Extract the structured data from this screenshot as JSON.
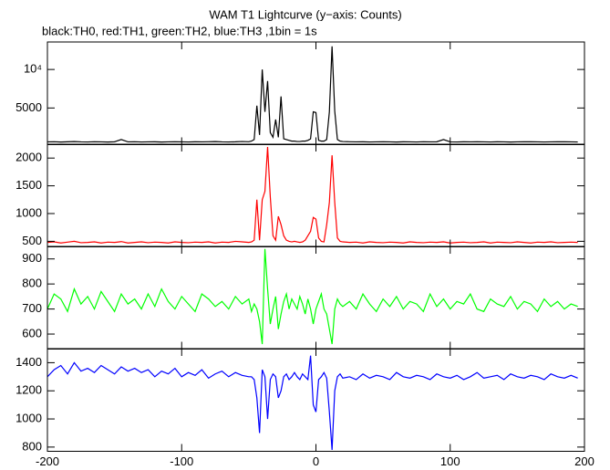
{
  "chart_data": {
    "type": "line",
    "title": "WAM T1 Lightcurve (y−axis: Counts)",
    "subtitle": "black:TH0, red:TH1, green:TH2, blue:TH3 ,1bin = 1s",
    "xlim": [
      -200,
      200
    ],
    "xticks": [
      -200,
      -100,
      0,
      100,
      200
    ],
    "x": [
      -200,
      -195,
      -190,
      -185,
      -180,
      -175,
      -170,
      -165,
      -160,
      -155,
      -150,
      -145,
      -140,
      -135,
      -130,
      -125,
      -120,
      -115,
      -110,
      -105,
      -100,
      -95,
      -90,
      -85,
      -80,
      -75,
      -70,
      -65,
      -60,
      -55,
      -50,
      -48,
      -46,
      -44,
      -42,
      -40,
      -38,
      -36,
      -34,
      -32,
      -30,
      -28,
      -26,
      -24,
      -22,
      -20,
      -18,
      -16,
      -14,
      -12,
      -10,
      -8,
      -6,
      -4,
      -2,
      0,
      2,
      4,
      6,
      8,
      10,
      12,
      14,
      16,
      18,
      20,
      25,
      30,
      35,
      40,
      45,
      50,
      55,
      60,
      65,
      70,
      75,
      80,
      85,
      90,
      95,
      100,
      105,
      110,
      115,
      120,
      125,
      130,
      135,
      140,
      145,
      150,
      155,
      160,
      165,
      170,
      175,
      180,
      185,
      190,
      195
    ],
    "panels": [
      {
        "ylim": [
          240,
          13570
        ],
        "yticks": [
          {
            "value": 10000,
            "label": "10⁴"
          },
          5000
        ],
        "series": [
          {
            "color": "#000000",
            "values": [
              600,
              620,
              580,
              610,
              640,
              600,
              590,
              620,
              600,
              580,
              610,
              900,
              600,
              620,
              590,
              600,
              610,
              580,
              600,
              620,
              600,
              590,
              610,
              600,
              620,
              640,
              600,
              590,
              610,
              650,
              620,
              700,
              900,
              5300,
              1500,
              10000,
              4500,
              8500,
              1800,
              1200,
              3500,
              1200,
              6500,
              1000,
              900,
              800,
              700,
              700,
              650,
              650,
              700,
              700,
              800,
              1000,
              4500,
              4400,
              800,
              700,
              700,
              900,
              4500,
              13000,
              4600,
              900,
              700,
              650,
              620,
              600,
              610,
              590,
              600,
              620,
              600,
              580,
              610,
              600,
              590,
              620,
              600,
              610,
              900,
              600,
              590,
              610,
              600,
              620,
              600,
              590,
              610,
              600,
              580,
              600,
              620,
              610,
              600,
              590,
              600,
              620,
              610,
              600,
              590
            ]
          }
        ]
      },
      {
        "ylim": [
          400,
          2250
        ],
        "yticks": [
          500,
          1000,
          1500,
          2000
        ],
        "series": [
          {
            "color": "#ff0000",
            "values": [
              480,
              490,
              470,
              485,
              500,
              475,
              480,
              490,
              470,
              485,
              480,
              495,
              470,
              480,
              490,
              475,
              485,
              480,
              470,
              490,
              480,
              475,
              485,
              480,
              490,
              470,
              485,
              480,
              500,
              490,
              480,
              490,
              520,
              1250,
              520,
              1250,
              1400,
              2200,
              1300,
              600,
              520,
              950,
              800,
              600,
              520,
              500,
              490,
              500,
              490,
              480,
              490,
              520,
              600,
              680,
              930,
              900,
              560,
              500,
              490,
              800,
              1200,
              2050,
              1200,
              560,
              500,
              490,
              480,
              485,
              470,
              490,
              480,
              475,
              485,
              480,
              470,
              490,
              480,
              475,
              485,
              480,
              490,
              470,
              480,
              485,
              475,
              480,
              490,
              470,
              485,
              480,
              475,
              490,
              480,
              470,
              485,
              480,
              490,
              475,
              480,
              485,
              480
            ]
          }
        ]
      },
      {
        "ylim": [
          540,
          950
        ],
        "yticks": [
          600,
          700,
          800,
          900
        ],
        "series": [
          {
            "color": "#00ff00",
            "values": [
              700,
              760,
              740,
              690,
              780,
              720,
              750,
              700,
              770,
              730,
              690,
              760,
              720,
              740,
              700,
              760,
              710,
              780,
              730,
              700,
              750,
              720,
              690,
              760,
              740,
              710,
              730,
              700,
              750,
              720,
              740,
              690,
              720,
              700,
              650,
              560,
              940,
              780,
              640,
              700,
              750,
              620,
              680,
              730,
              760,
              700,
              740,
              720,
              700,
              750,
              720,
              680,
              740,
              700,
              640,
              700,
              730,
              760,
              700,
              680,
              620,
              560,
              700,
              740,
              720,
              710,
              730,
              700,
              760,
              720,
              690,
              740,
              710,
              750,
              700,
              730,
              720,
              690,
              760,
              710,
              740,
              700,
              730,
              720,
              760,
              700,
              690,
              740,
              720,
              710,
              750,
              700,
              730,
              720,
              690,
              740,
              710,
              730,
              700,
              720,
              710
            ]
          }
        ]
      },
      {
        "ylim": [
          770,
          1500
        ],
        "yticks": [
          800,
          1000,
          1200,
          1400
        ],
        "series": [
          {
            "color": "#0000ff",
            "values": [
              1300,
              1350,
              1380,
              1320,
              1400,
              1340,
              1360,
              1330,
              1380,
              1350,
              1320,
              1370,
              1340,
              1360,
              1330,
              1350,
              1300,
              1340,
              1320,
              1360,
              1300,
              1330,
              1310,
              1350,
              1290,
              1320,
              1340,
              1300,
              1330,
              1310,
              1300,
              1300,
              1280,
              1150,
              900,
              1350,
              1300,
              1000,
              1280,
              1320,
              1300,
              1150,
              1200,
              1300,
              1320,
              1280,
              1300,
              1330,
              1300,
              1280,
              1320,
              1300,
              1280,
              1450,
              1100,
              1050,
              1280,
              1300,
              1330,
              1290,
              1050,
              780,
              1200,
              1300,
              1320,
              1290,
              1300,
              1280,
              1320,
              1290,
              1310,
              1300,
              1280,
              1330,
              1300,
              1290,
              1310,
              1300,
              1280,
              1320,
              1300,
              1290,
              1310,
              1280,
              1300,
              1330,
              1290,
              1300,
              1310,
              1280,
              1320,
              1300,
              1290,
              1310,
              1300,
              1280,
              1320,
              1300,
              1290,
              1310,
              1290
            ]
          }
        ]
      }
    ]
  }
}
